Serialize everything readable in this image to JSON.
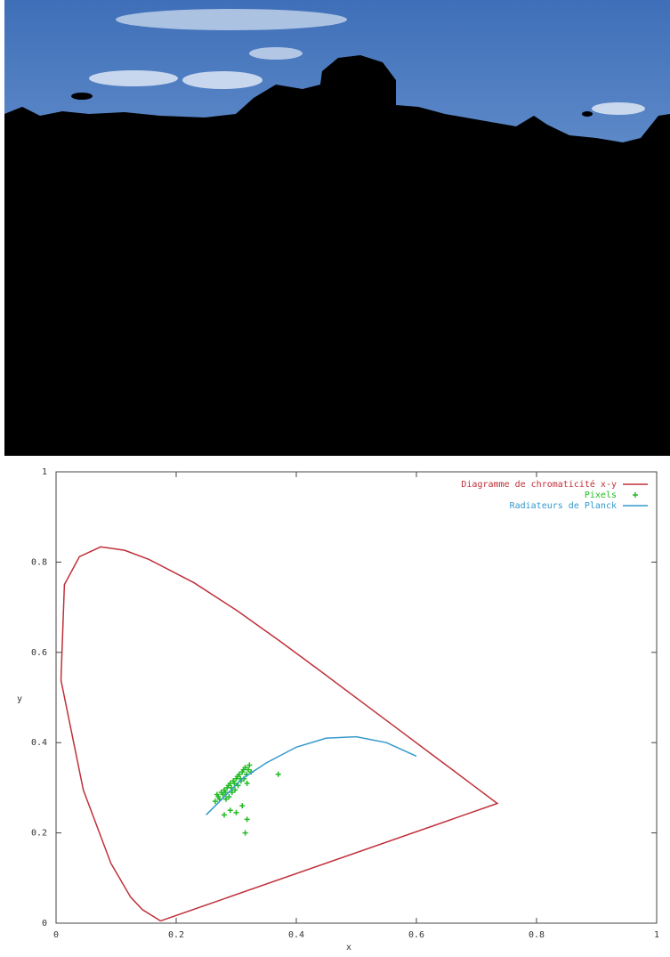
{
  "chart_data": {
    "type": "scatter",
    "xlabel": "x",
    "ylabel": "y",
    "xlim": [
      0,
      1
    ],
    "ylim": [
      0,
      1
    ],
    "xticks": [
      0,
      0.2,
      0.4,
      0.6,
      0.8,
      1
    ],
    "yticks": [
      0,
      0.2,
      0.4,
      0.6,
      0.8,
      1
    ],
    "legend": "upper right",
    "series": [
      {
        "name": "Diagramme de chromaticité x-y",
        "color": "#c0303a",
        "style": "line",
        "x": [
          0.1741,
          0.144,
          0.1241,
          0.0913,
          0.0454,
          0.0082,
          0.0139,
          0.0389,
          0.0743,
          0.1142,
          0.1547,
          0.2296,
          0.3016,
          0.3731,
          0.4441,
          0.5125,
          0.5752,
          0.627,
          0.6658,
          0.6915,
          0.7347,
          0.1741
        ],
        "values": [
          0.005,
          0.0297,
          0.0578,
          0.1327,
          0.295,
          0.5384,
          0.7502,
          0.812,
          0.8338,
          0.8262,
          0.8059,
          0.7543,
          0.6923,
          0.6245,
          0.5547,
          0.4866,
          0.4242,
          0.3725,
          0.334,
          0.3083,
          0.2653,
          0.005
        ]
      },
      {
        "name": "Pixels",
        "color": "#22bb22",
        "style": "points",
        "x": [
          0.265,
          0.27,
          0.272,
          0.275,
          0.278,
          0.28,
          0.282,
          0.285,
          0.287,
          0.29,
          0.292,
          0.295,
          0.297,
          0.3,
          0.302,
          0.305,
          0.307,
          0.31,
          0.312,
          0.315,
          0.317,
          0.32,
          0.322,
          0.325,
          0.268,
          0.283,
          0.293,
          0.303,
          0.313,
          0.318,
          0.298,
          0.288,
          0.308,
          0.37,
          0.315,
          0.318,
          0.31,
          0.28,
          0.29,
          0.3
        ],
        "values": [
          0.27,
          0.28,
          0.275,
          0.29,
          0.285,
          0.295,
          0.29,
          0.3,
          0.305,
          0.31,
          0.3,
          0.315,
          0.31,
          0.32,
          0.325,
          0.33,
          0.32,
          0.335,
          0.34,
          0.345,
          0.33,
          0.34,
          0.35,
          0.335,
          0.285,
          0.275,
          0.29,
          0.305,
          0.32,
          0.31,
          0.295,
          0.28,
          0.315,
          0.33,
          0.2,
          0.23,
          0.26,
          0.24,
          0.25,
          0.245
        ]
      },
      {
        "name": "Radiateurs de Planck",
        "color": "#3399cc",
        "style": "line",
        "x": [
          0.25,
          0.28,
          0.31,
          0.35,
          0.4,
          0.45,
          0.5,
          0.55,
          0.6
        ],
        "values": [
          0.24,
          0.28,
          0.32,
          0.355,
          0.39,
          0.41,
          0.413,
          0.4,
          0.37
        ]
      }
    ]
  }
}
